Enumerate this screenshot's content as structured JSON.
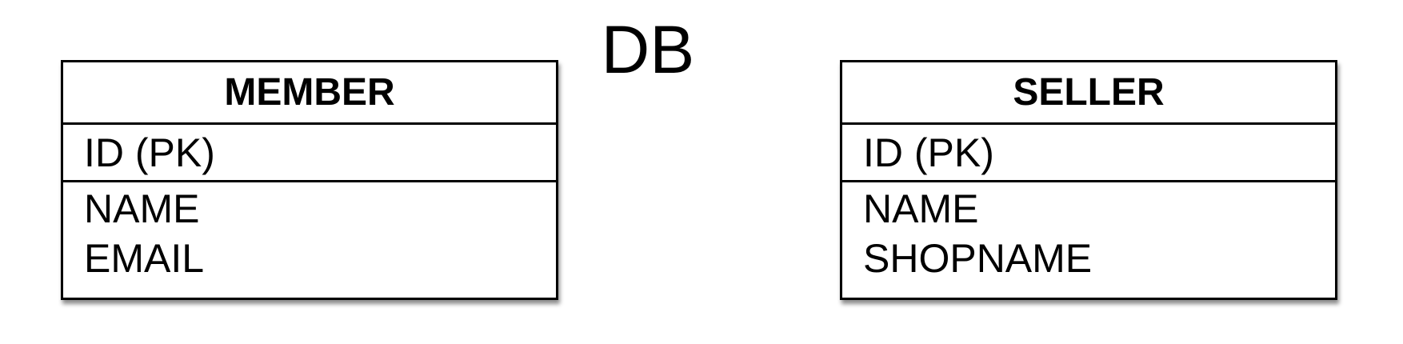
{
  "diagram": {
    "title": "DB",
    "entities": [
      {
        "name": "MEMBER",
        "primary_key": "ID (PK)",
        "attributes": [
          "NAME",
          "EMAIL"
        ]
      },
      {
        "name": "SELLER",
        "primary_key": "ID (PK)",
        "attributes": [
          "NAME",
          "SHOPNAME"
        ]
      }
    ]
  }
}
